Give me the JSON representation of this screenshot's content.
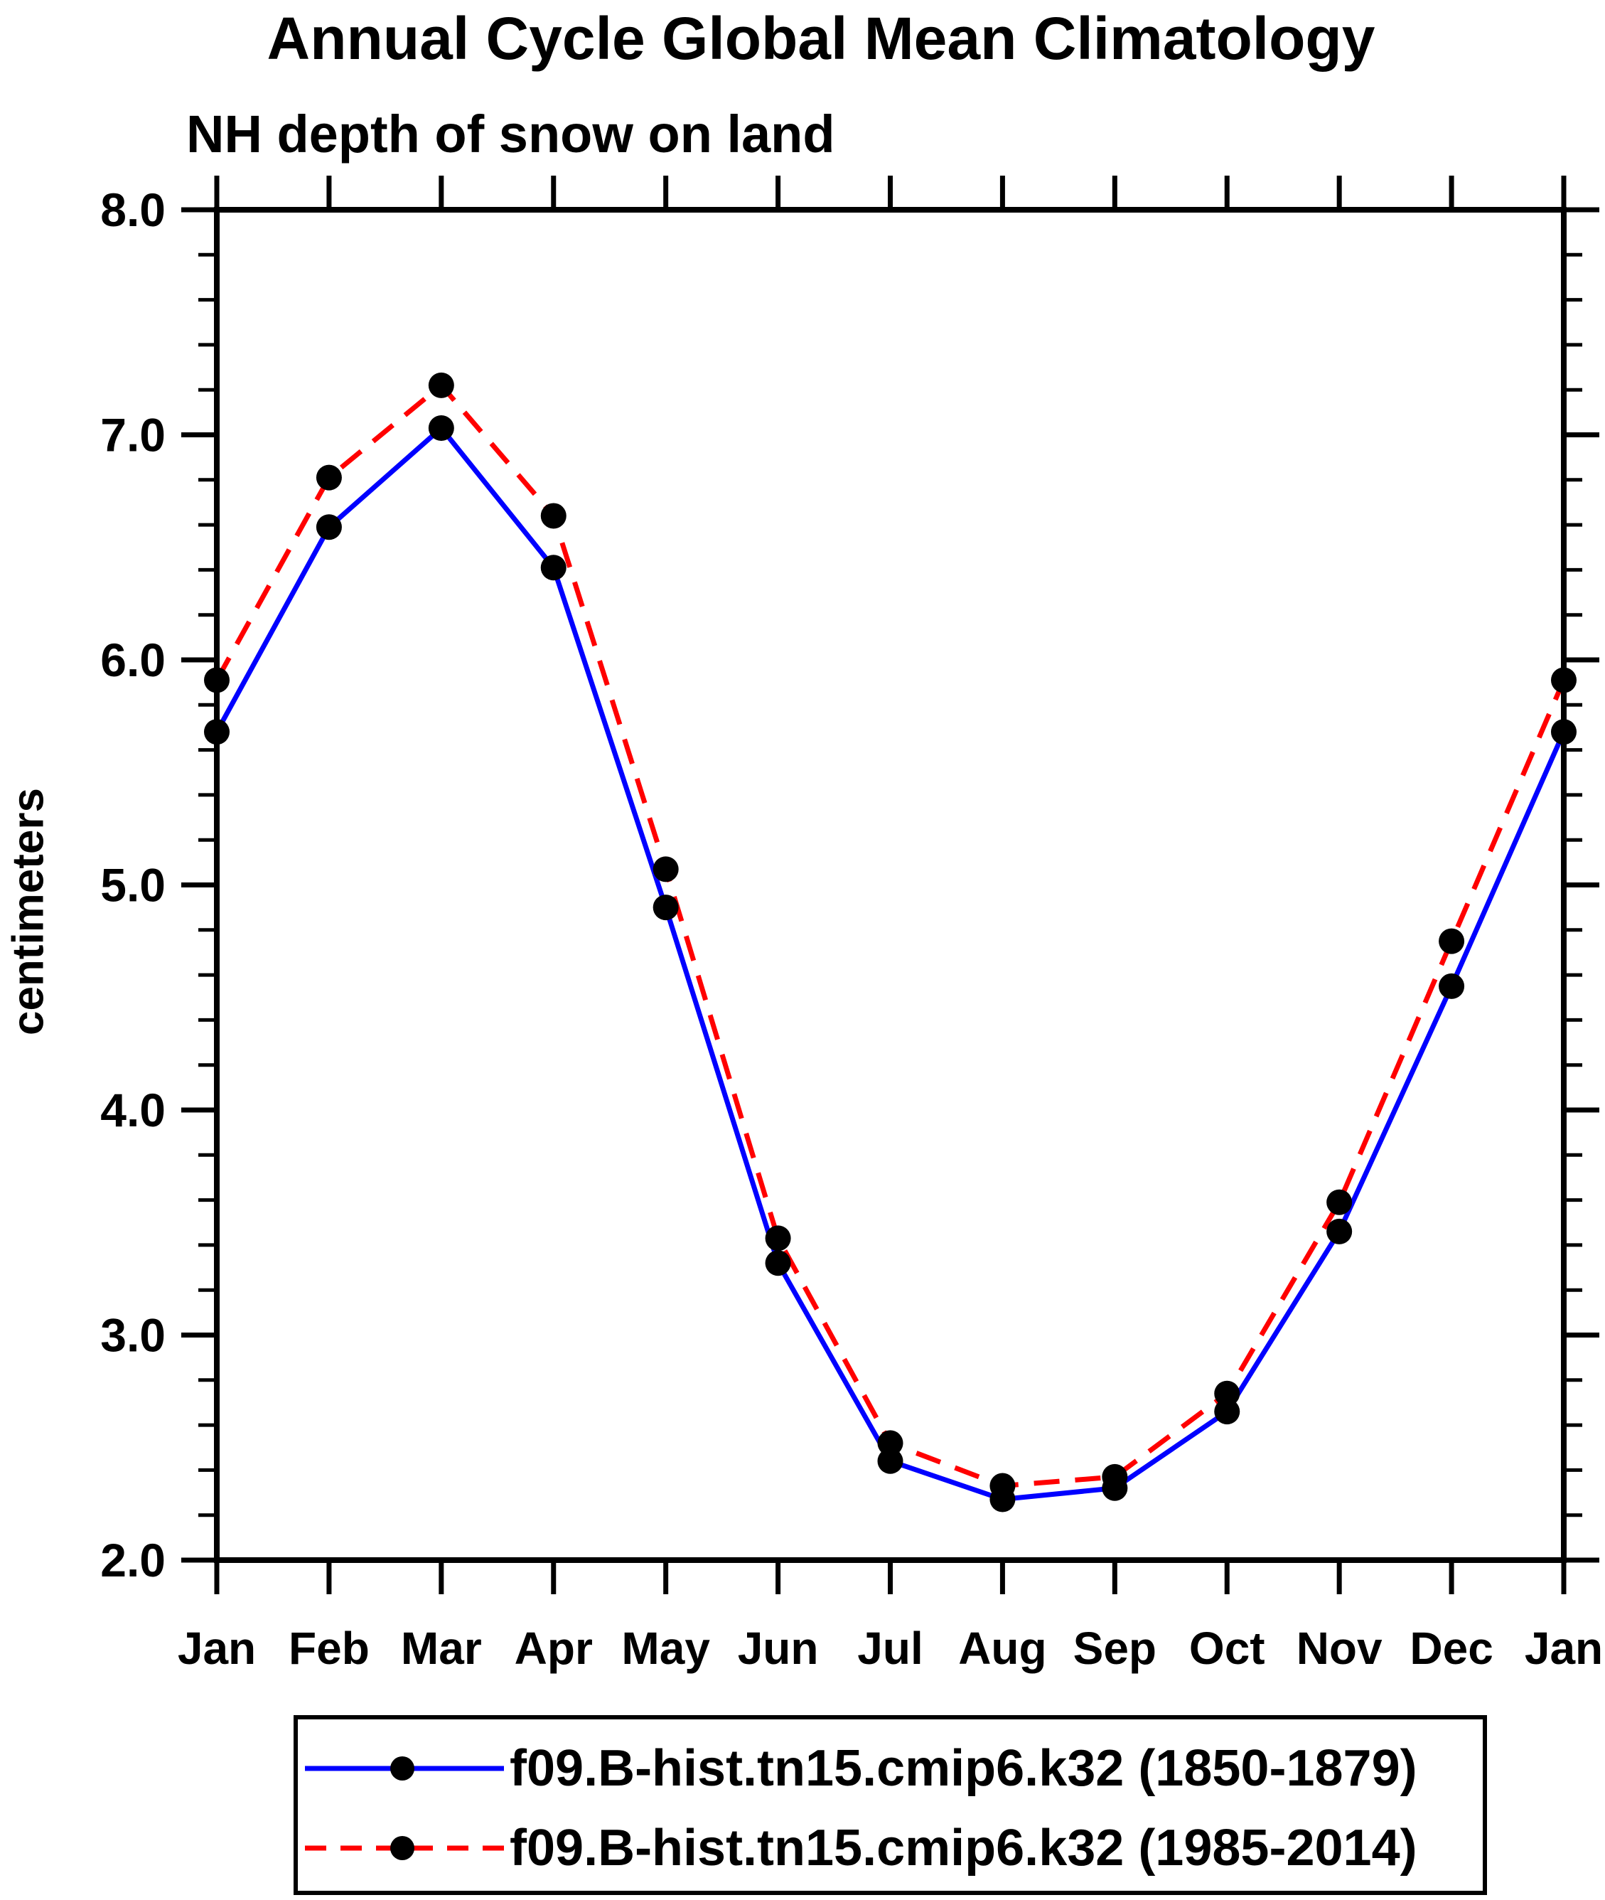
{
  "chart_data": {
    "type": "line",
    "title": "Annual Cycle Global Mean Climatology",
    "subtitle": "NH depth of snow on land",
    "ylabel": "centimeters",
    "xlabel": "",
    "x_tick_labels": [
      "Jan",
      "Feb",
      "Mar",
      "Apr",
      "May",
      "Jun",
      "Jul",
      "Aug",
      "Sep",
      "Oct",
      "Nov",
      "Dec",
      "Jan"
    ],
    "y_tick_labels": [
      "2.0",
      "3.0",
      "4.0",
      "5.0",
      "6.0",
      "7.0",
      "8.0"
    ],
    "y_ticks": [
      2.0,
      3.0,
      4.0,
      5.0,
      6.0,
      7.0,
      8.0
    ],
    "y_minor_step": 0.2,
    "ylim": [
      2.0,
      8.0
    ],
    "grid": false,
    "legend_position": "bottom",
    "axis_color": "#000000",
    "marker_color": "#000000",
    "series": [
      {
        "name": "f09.B-hist.tn15.cmip6.k32 (1850-1879)",
        "color": "#0000ff",
        "style": "solid",
        "marker": "circle",
        "values": [
          5.68,
          6.59,
          7.03,
          6.41,
          4.9,
          3.32,
          2.44,
          2.27,
          2.32,
          2.66,
          3.46,
          4.55,
          5.68
        ]
      },
      {
        "name": "f09.B-hist.tn15.cmip6.k32 (1985-2014)",
        "color": "#ff0000",
        "style": "dashed",
        "marker": "circle",
        "values": [
          5.91,
          6.81,
          7.22,
          6.64,
          5.07,
          3.43,
          2.52,
          2.33,
          2.37,
          2.74,
          3.59,
          4.75,
          5.91
        ]
      }
    ]
  }
}
